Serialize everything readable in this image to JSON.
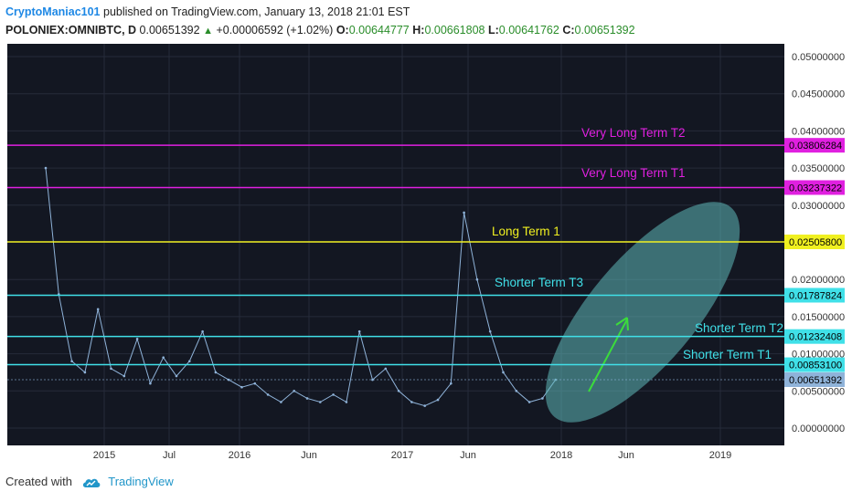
{
  "header": {
    "author": "CryptoManiac101",
    "published_text": "published on TradingView.com, January 13, 2018 21:01 EST",
    "symbol": "POLONIEX:OMNIBTC, D",
    "last": "0.00651392",
    "change": "+0.00006592 (+1.02%)",
    "o_label": "O:",
    "o_value": "0.00644777",
    "h_label": "H:",
    "h_value": "0.00661808",
    "l_label": "L:",
    "l_value": "0.00641762",
    "c_label": "C:",
    "c_value": "0.00651392"
  },
  "footer": {
    "created_with": "Created with",
    "brand": "TradingView"
  },
  "colors": {
    "background": "#131722",
    "price_line": "#8fb3d9",
    "magenta": "#e020e0",
    "yellow": "#f0f020",
    "cyan": "#40e0e8",
    "ellipse": "#5fb8b8",
    "arrow": "#3bdc3b",
    "last_price_bg": "#8fb3d9"
  },
  "chart_data": {
    "type": "line",
    "symbol": "POLONIEX:OMNIBTC",
    "ylim": [
      0,
      0.05
    ],
    "y_ticks": [
      "0.05000000",
      "0.04500000",
      "0.04000000",
      "0.03500000",
      "0.03000000",
      "0.02500000",
      "0.02000000",
      "0.01500000",
      "0.01000000",
      "0.00500000",
      "0.00000000"
    ],
    "x_ticks": [
      "2015",
      "Jul",
      "2016",
      "Jun",
      "2017",
      "Jun",
      "2018",
      "Jun",
      "2019"
    ],
    "series": [
      {
        "x": [
          "2014-10",
          "2014-11",
          "2014-12",
          "2015-01",
          "2015-02",
          "2015-03",
          "2015-04",
          "2015-05",
          "2015-06",
          "2015-07",
          "2015-08",
          "2015-09",
          "2015-10",
          "2015-11",
          "2015-12",
          "2016-01",
          "2016-02",
          "2016-03",
          "2016-04",
          "2016-05",
          "2016-06",
          "2016-07",
          "2016-08",
          "2016-09",
          "2016-10",
          "2016-11",
          "2016-12",
          "2017-01",
          "2017-02",
          "2017-03",
          "2017-04",
          "2017-05",
          "2017-06",
          "2017-07",
          "2017-08",
          "2017-09",
          "2017-10",
          "2017-11",
          "2017-12",
          "2018-01"
        ],
        "values": [
          0.035,
          0.018,
          0.009,
          0.0075,
          0.016,
          0.008,
          0.007,
          0.012,
          0.006,
          0.0095,
          0.007,
          0.009,
          0.013,
          0.0075,
          0.0065,
          0.0055,
          0.006,
          0.0045,
          0.0035,
          0.005,
          0.004,
          0.0035,
          0.0045,
          0.0035,
          0.013,
          0.0065,
          0.008,
          0.005,
          0.0035,
          0.003,
          0.0038,
          0.006,
          0.029,
          0.02,
          0.013,
          0.0075,
          0.005,
          0.0035,
          0.004,
          0.0065
        ]
      }
    ],
    "horizontal_levels": [
      {
        "label": "Very Long Term T2",
        "value": 0.03806284,
        "price_label": "0.03806284",
        "color": "#e020e0"
      },
      {
        "label": "Very Long Term T1",
        "value": 0.03237322,
        "price_label": "0.03237322",
        "color": "#e020e0"
      },
      {
        "label": "Long Term 1",
        "value": 0.025058,
        "price_label": "0.02505800",
        "color": "#f0f020"
      },
      {
        "label": "Shorter Term T3",
        "value": 0.01787824,
        "price_label": "0.01787824",
        "color": "#40e0e8"
      },
      {
        "label": "Shorter Term T2",
        "value": 0.01232408,
        "price_label": "0.01232408",
        "color": "#40e0e8"
      },
      {
        "label": "Shorter Term T1",
        "value": 0.008531,
        "price_label": "0.00853100",
        "color": "#40e0e8"
      }
    ],
    "last_price": {
      "value": 0.00651392,
      "label": "0.00651392"
    },
    "grid": true
  }
}
